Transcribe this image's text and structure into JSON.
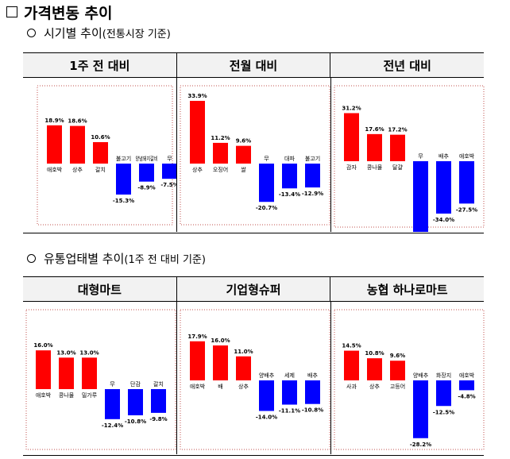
{
  "heading": "가격변동 추이",
  "section1": {
    "title": "시기별 추이",
    "note": "(전통시장 기준)"
  },
  "section2": {
    "title": "유통업태별 추이",
    "note": "(1주 전 대비 기준)"
  },
  "colors": {
    "up": "#ff0000",
    "down": "#0000ff",
    "header_bg": "#f2f2f2",
    "frame": "#c0504d"
  },
  "chart_data": [
    {
      "type": "bar",
      "title": "1주 전 대비",
      "categories": [
        "애호박",
        "상추",
        "갈치",
        "불고기",
        "양념돼지갈비",
        "무"
      ],
      "values": [
        18.9,
        18.6,
        10.6,
        -15.3,
        -8.9,
        -7.5
      ]
    },
    {
      "type": "bar",
      "title": "전월 대비",
      "categories": [
        "상추",
        "오징어",
        "쌀",
        "무",
        "대파",
        "불고기"
      ],
      "values": [
        33.9,
        11.2,
        9.6,
        -20.7,
        -13.4,
        -12.9
      ]
    },
    {
      "type": "bar",
      "title": "전년 대비",
      "categories": [
        "감자",
        "콩나물",
        "달걀",
        "무",
        "배추",
        "애호박"
      ],
      "values": [
        31.2,
        17.6,
        17.2,
        -49.3,
        -34.0,
        -27.5
      ]
    },
    {
      "type": "bar",
      "title": "대형마트",
      "categories": [
        "애호박",
        "콩나물",
        "밀가루",
        "무",
        "단감",
        "갈치"
      ],
      "values": [
        16.0,
        13.0,
        13.0,
        -12.4,
        -10.8,
        -9.8
      ]
    },
    {
      "type": "bar",
      "title": "기업형슈퍼",
      "categories": [
        "애호박",
        "배",
        "상추",
        "양배추",
        "세제",
        "배추"
      ],
      "values": [
        17.9,
        16.0,
        11.0,
        -14.0,
        -11.1,
        -10.8
      ]
    },
    {
      "type": "bar",
      "title": "농협 하나로마트",
      "categories": [
        "사과",
        "상추",
        "고등어",
        "양배추",
        "화장지",
        "애호박"
      ],
      "values": [
        14.5,
        10.8,
        9.6,
        -28.2,
        -12.5,
        -4.8
      ]
    }
  ]
}
